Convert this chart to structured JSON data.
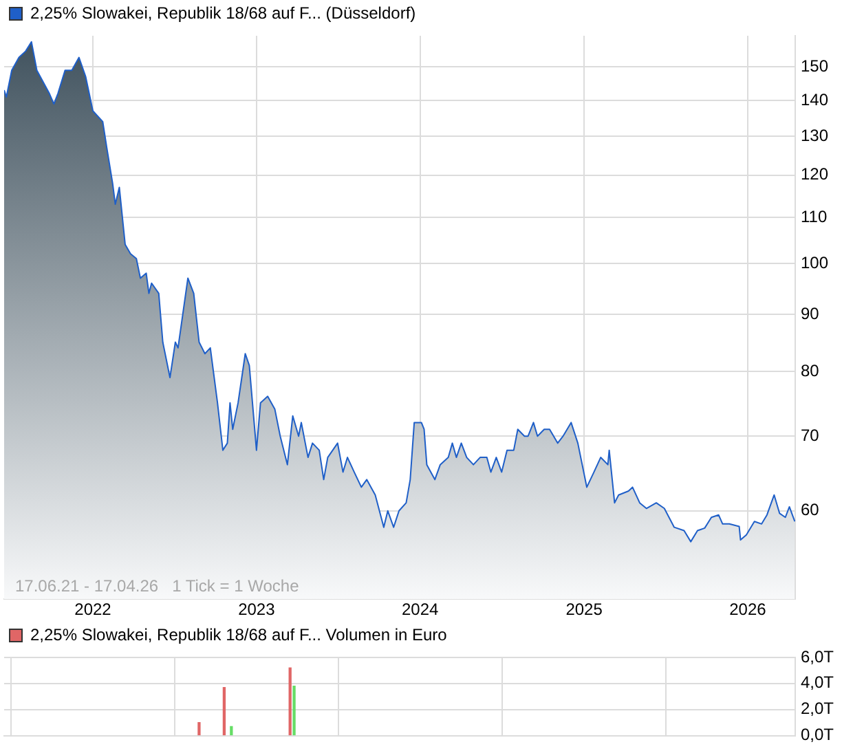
{
  "chart_data": [
    {
      "type": "area",
      "x": [
        "2021-06-17",
        "2021-06-22",
        "2021-07-04",
        "2021-07-20",
        "2021-08-04",
        "2021-08-17",
        "2021-08-29",
        "2021-09-26",
        "2021-10-06",
        "2021-10-15",
        "2021-10-31",
        "2021-11-15",
        "2021-12-01",
        "2021-12-16",
        "2022-01-01",
        "2022-01-23",
        "2022-02-01",
        "2022-02-14",
        "2022-02-20",
        "2022-03-01",
        "2022-03-14",
        "2022-03-26",
        "2022-04-08",
        "2022-04-17",
        "2022-04-30",
        "2022-05-06",
        "2022-05-12",
        "2022-05-28",
        "2022-06-06",
        "2022-06-22",
        "2022-07-04",
        "2022-07-10",
        "2022-08-01",
        "2022-08-14",
        "2022-08-26",
        "2022-09-08",
        "2022-09-20",
        "2022-10-06",
        "2022-10-18",
        "2022-10-28",
        "2022-11-03",
        "2022-11-09",
        "2022-11-21",
        "2022-12-07",
        "2022-12-16",
        "2023-01-01",
        "2023-01-10",
        "2023-01-26",
        "2023-02-11",
        "2023-02-23",
        "2023-03-11",
        "2023-03-23",
        "2023-04-05",
        "2023-04-11",
        "2023-04-26",
        "2023-05-06",
        "2023-05-21",
        "2023-05-31",
        "2023-06-09",
        "2023-07-01",
        "2023-07-13",
        "2023-07-23",
        "2023-08-07",
        "2023-08-23",
        "2023-09-04",
        "2023-09-23",
        "2023-10-12",
        "2023-10-21",
        "2023-11-03",
        "2023-11-15",
        "2023-12-01",
        "2023-12-10",
        "2023-12-19",
        "2024-01-04",
        "2024-01-10",
        "2024-01-16",
        "2024-01-25",
        "2024-02-03",
        "2024-02-15",
        "2024-03-04",
        "2024-03-13",
        "2024-03-22",
        "2024-04-02",
        "2024-04-14",
        "2024-04-29",
        "2024-05-14",
        "2024-05-29",
        "2024-06-07",
        "2024-06-19",
        "2024-07-01",
        "2024-07-13",
        "2024-07-28",
        "2024-08-06",
        "2024-08-21",
        "2024-08-29",
        "2024-09-10",
        "2024-09-19",
        "2024-10-04",
        "2024-10-16",
        "2024-11-03",
        "2024-11-15",
        "2024-12-03",
        "2024-12-18",
        "2025-01-07",
        "2025-01-23",
        "2025-02-07",
        "2025-02-23",
        "2025-02-26",
        "2025-03-10",
        "2025-03-19",
        "2025-04-10",
        "2025-04-19",
        "2025-05-05",
        "2025-05-20",
        "2025-06-11",
        "2025-06-29",
        "2025-07-21",
        "2025-08-12",
        "2025-08-27",
        "2025-09-11",
        "2025-09-27",
        "2025-10-12",
        "2025-10-28",
        "2025-11-06",
        "2025-11-21",
        "2025-12-13",
        "2025-12-16",
        "2025-12-29",
        "2026-01-16",
        "2026-02-01",
        "2026-02-13",
        "2026-03-01",
        "2026-03-13",
        "2026-03-26",
        "2026-04-04",
        "2026-04-16"
      ],
      "series": [
        {
          "name": "2,25% Slowakei, Republik 18/68 auf F... (Düsseldorf)",
          "color": "#1f5fc8",
          "values": [
            143,
            141,
            149,
            153,
            155,
            158,
            149,
            142,
            139,
            142,
            149,
            149,
            153,
            147,
            137,
            134,
            127,
            118,
            113,
            117,
            104,
            102,
            101,
            97,
            98,
            94,
            96,
            94,
            85,
            79,
            85,
            84,
            97,
            94,
            85,
            83,
            84,
            75,
            68,
            69,
            75,
            71,
            75,
            83,
            81,
            68,
            75,
            76,
            74,
            70,
            66,
            73,
            70,
            72,
            67,
            69,
            68,
            64,
            67,
            69,
            65,
            67,
            65,
            63,
            64,
            62,
            58,
            60,
            58,
            60,
            61,
            64,
            72,
            72,
            71,
            66,
            65,
            64,
            66,
            67,
            69,
            67,
            69,
            67,
            66,
            67,
            67,
            65,
            67,
            65,
            68,
            68,
            71,
            70,
            70,
            72,
            70,
            71,
            71,
            69,
            70,
            72,
            69,
            63,
            65,
            67,
            66,
            68,
            61,
            62,
            62.5,
            63,
            61,
            60.3,
            61,
            60.3,
            58,
            57.6,
            56.3,
            57.6,
            57.9,
            59.2,
            59.5,
            58.4,
            58.4,
            58.1,
            56.5,
            57.1,
            58.7,
            58.4,
            59.5,
            62,
            59.7,
            59.2,
            60.5,
            58.7
          ]
        }
      ],
      "xlim": [
        "2021-06-17",
        "2026-04-17"
      ],
      "xticks": [
        {
          "value": "2022",
          "label": "2022"
        },
        {
          "value": "2023",
          "label": "2023"
        },
        {
          "value": "2024",
          "label": "2024"
        },
        {
          "value": "2025",
          "label": "2025"
        },
        {
          "value": "2026",
          "label": "2026"
        }
      ],
      "log": true,
      "ylim": [
        50,
        160
      ],
      "yticks": [
        60,
        70,
        80,
        90,
        100,
        110,
        120,
        130,
        140,
        150
      ],
      "grid": true,
      "legend": "top left",
      "marker": "none",
      "annotations": [
        "17.06.21 - 17.04.26   1 Tick = 1 Woche"
      ]
    },
    {
      "type": "bar",
      "x": [
        "2022-08-26",
        "2022-10-21",
        "2022-11-06",
        "2023-03-17",
        "2023-03-26"
      ],
      "series": [
        {
          "name": "2,25% Slowakei, Republik 18/68 auf F... Volumen in Euro",
          "color": "#e06666",
          "colors": [
            "#e06666",
            "#e06666",
            "#66dd66",
            "#e06666",
            "#66dd66"
          ],
          "values": [
            1.0,
            3.7,
            0.7,
            5.2,
            3.8
          ]
        }
      ],
      "xlim": [
        "2021-06-17",
        "2026-04-17"
      ],
      "xticks": [
        {
          "value": "2022",
          "label": null
        },
        {
          "value": "2023",
          "label": null
        },
        {
          "value": "2024",
          "label": null
        },
        {
          "value": "2025",
          "label": null
        },
        {
          "value": "2026",
          "label": null
        }
      ],
      "ylim": [
        0,
        6
      ],
      "yticks": [
        {
          "value": 0,
          "label": "0,0T"
        },
        {
          "value": 2,
          "label": "2,0T"
        },
        {
          "value": 4,
          "label": "4,0T"
        },
        {
          "value": 6,
          "label": "6,0T"
        }
      ],
      "grid": true,
      "legend": "top left",
      "tick_labels": "y"
    }
  ]
}
